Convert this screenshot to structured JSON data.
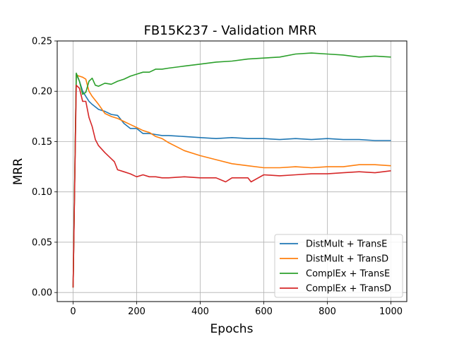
{
  "chart_data": {
    "type": "line",
    "title": "FB15K237 - Validation MRR",
    "xlabel": "Epochs",
    "ylabel": "MRR",
    "xlim": [
      -50,
      1050
    ],
    "ylim": [
      -0.009,
      0.25
    ],
    "xticks": [
      0,
      200,
      400,
      600,
      800,
      1000
    ],
    "yticks": [
      0.0,
      0.05,
      0.1,
      0.15,
      0.2,
      0.25
    ],
    "xtick_labels": [
      "0",
      "200",
      "400",
      "600",
      "800",
      "1000"
    ],
    "ytick_labels": [
      "0.00",
      "0.05",
      "0.10",
      "0.15",
      "0.20",
      "0.25"
    ],
    "grid": true,
    "legend_position": "bottom-right",
    "series": [
      {
        "name": "DistMult + TransE",
        "color": "#1f77b4",
        "x": [
          0,
          10,
          20,
          30,
          40,
          50,
          60,
          80,
          100,
          120,
          140,
          160,
          180,
          200,
          220,
          240,
          260,
          280,
          300,
          350,
          400,
          450,
          500,
          550,
          600,
          650,
          700,
          750,
          800,
          850,
          900,
          950,
          1000
        ],
        "y": [
          0.005,
          0.217,
          0.21,
          0.2,
          0.195,
          0.19,
          0.187,
          0.182,
          0.18,
          0.177,
          0.176,
          0.168,
          0.163,
          0.163,
          0.158,
          0.158,
          0.157,
          0.156,
          0.156,
          0.155,
          0.154,
          0.153,
          0.154,
          0.153,
          0.153,
          0.152,
          0.153,
          0.152,
          0.153,
          0.152,
          0.152,
          0.151,
          0.151
        ]
      },
      {
        "name": "DistMult + TransD",
        "color": "#ff7f0e",
        "x": [
          0,
          10,
          20,
          30,
          40,
          50,
          60,
          80,
          100,
          120,
          140,
          160,
          180,
          200,
          220,
          240,
          260,
          280,
          300,
          350,
          400,
          450,
          500,
          550,
          600,
          650,
          700,
          750,
          800,
          850,
          900,
          950,
          1000
        ],
        "y": [
          0.005,
          0.216,
          0.215,
          0.214,
          0.212,
          0.2,
          0.195,
          0.187,
          0.178,
          0.175,
          0.173,
          0.17,
          0.167,
          0.164,
          0.161,
          0.159,
          0.155,
          0.153,
          0.149,
          0.141,
          0.136,
          0.132,
          0.128,
          0.126,
          0.124,
          0.124,
          0.125,
          0.124,
          0.125,
          0.125,
          0.127,
          0.127,
          0.126
        ]
      },
      {
        "name": "ComplEx + TransE",
        "color": "#2ca02c",
        "x": [
          0,
          10,
          20,
          30,
          40,
          50,
          60,
          70,
          80,
          100,
          120,
          140,
          160,
          180,
          200,
          220,
          240,
          260,
          280,
          300,
          350,
          400,
          450,
          500,
          550,
          600,
          650,
          700,
          750,
          800,
          850,
          900,
          950,
          1000
        ],
        "y": [
          0.005,
          0.218,
          0.21,
          0.197,
          0.199,
          0.21,
          0.213,
          0.206,
          0.205,
          0.208,
          0.207,
          0.21,
          0.212,
          0.215,
          0.217,
          0.219,
          0.219,
          0.222,
          0.222,
          0.223,
          0.225,
          0.227,
          0.229,
          0.23,
          0.232,
          0.233,
          0.234,
          0.237,
          0.238,
          0.237,
          0.236,
          0.234,
          0.235,
          0.234
        ]
      },
      {
        "name": "ComplEx + TransD",
        "color": "#d62728",
        "x": [
          0,
          10,
          20,
          30,
          40,
          50,
          60,
          70,
          80,
          100,
          120,
          130,
          140,
          160,
          180,
          200,
          220,
          240,
          260,
          280,
          300,
          350,
          400,
          450,
          480,
          500,
          550,
          560,
          600,
          650,
          700,
          750,
          800,
          850,
          900,
          950,
          1000
        ],
        "y": [
          0.005,
          0.206,
          0.203,
          0.19,
          0.19,
          0.174,
          0.165,
          0.152,
          0.146,
          0.139,
          0.133,
          0.13,
          0.122,
          0.12,
          0.118,
          0.115,
          0.117,
          0.115,
          0.115,
          0.114,
          0.114,
          0.115,
          0.114,
          0.114,
          0.11,
          0.114,
          0.114,
          0.11,
          0.117,
          0.116,
          0.117,
          0.118,
          0.118,
          0.119,
          0.12,
          0.119,
          0.121
        ]
      }
    ]
  }
}
